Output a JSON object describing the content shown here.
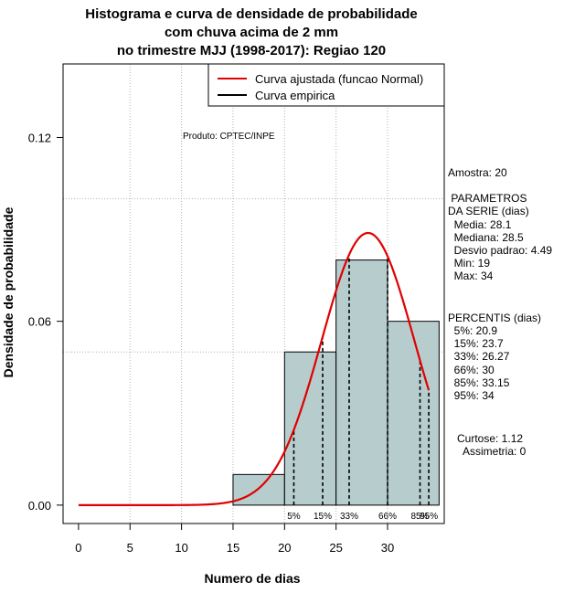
{
  "chart_data": {
    "type": "histogram",
    "title_lines": [
      "Histograma e curva de densidade de probabilidade",
      "com chuva acima de 2 mm",
      "no trimestre MJJ (1998-2017): Regiao 120"
    ],
    "xlabel": "Numero de dias",
    "ylabel": "Densidade de probabilidade",
    "xlim": [
      -1.5,
      35.5
    ],
    "ylim": [
      -0.006,
      0.144
    ],
    "x_ticks": [
      0,
      5,
      10,
      15,
      20,
      25,
      30
    ],
    "x_tick_labels": [
      "0",
      "5",
      "10",
      "15",
      "20",
      "25",
      "30"
    ],
    "y_ticks": [
      0.0,
      0.06,
      0.12
    ],
    "y_tick_labels": [
      "0.00",
      "0.06",
      "0.12"
    ],
    "grid_x": [
      5,
      10,
      15,
      20,
      25,
      30
    ],
    "grid_y": [
      0.05,
      0.1
    ],
    "bars": [
      {
        "x0": 15,
        "x1": 20,
        "density": 0.01
      },
      {
        "x0": 20,
        "x1": 25,
        "density": 0.05
      },
      {
        "x0": 25,
        "x1": 30,
        "density": 0.08
      },
      {
        "x0": 30,
        "x1": 35,
        "density": 0.06
      }
    ],
    "bar_color": "#b7cdcd",
    "curve": {
      "type": "normal",
      "mean": 28.1,
      "sd": 4.49,
      "x_from": 0,
      "x_to": 34,
      "color": "#e00000"
    },
    "percentile_lines": [
      {
        "label": "5%",
        "x": 20.9
      },
      {
        "label": "15%",
        "x": 23.7
      },
      {
        "label": "33%",
        "x": 26.27
      },
      {
        "label": "66%",
        "x": 30
      },
      {
        "label": "85%",
        "x": 33.15
      },
      {
        "label": "95%",
        "x": 34
      }
    ],
    "legend": {
      "position": "top-right",
      "entries": [
        {
          "label": "Curva ajustada (funcao Normal)",
          "color": "#e00000"
        },
        {
          "label": "Curva empirica",
          "color": "#000000"
        }
      ]
    },
    "product_note": "Produto: CPTEC/INPE",
    "side_text": [
      "Amostra: 20",
      " PARAMETROS",
      "DA SERIE (dias)",
      "  Media: 28.1",
      "  Mediana: 28.5",
      "  Desvio padrao: 4.49",
      "  Min: 19",
      "  Max: 34",
      "PERCENTIS (dias)",
      "  5%: 20.9",
      "  15%: 23.7",
      "  33%: 26.27",
      "  66%: 30",
      "  85%: 33.15",
      "  95%: 34",
      "Curtose: 1.12",
      "  Assimetria: 0"
    ]
  }
}
